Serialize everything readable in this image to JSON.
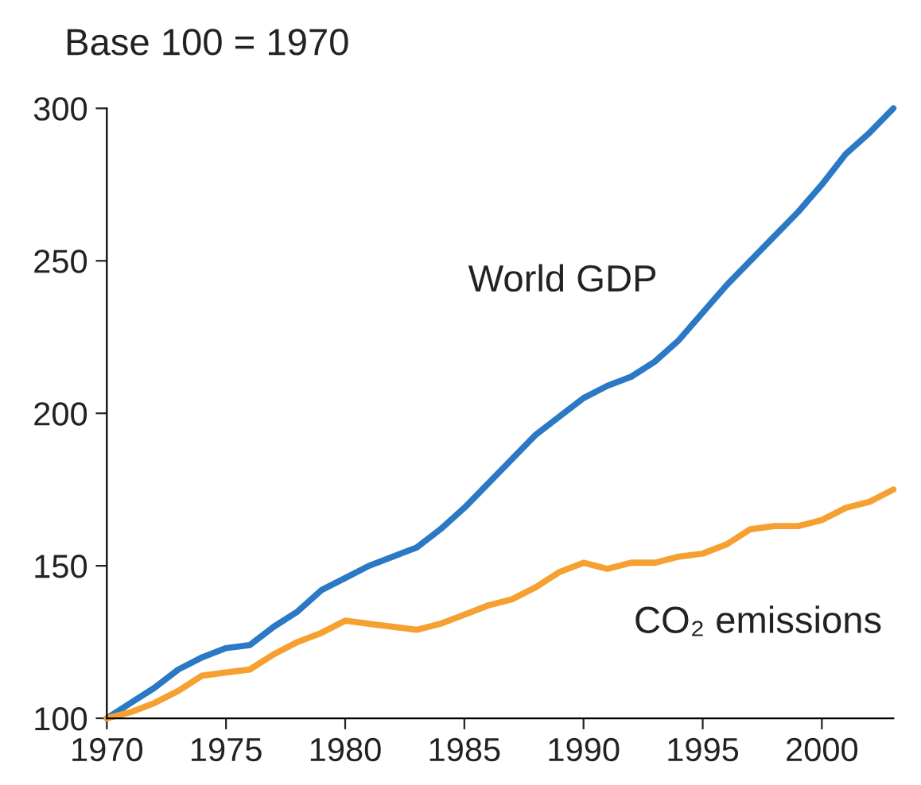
{
  "chart_data": {
    "type": "line",
    "ylabel": "Base 100 = 1970",
    "x": [
      1970,
      1971,
      1972,
      1973,
      1974,
      1975,
      1976,
      1977,
      1978,
      1979,
      1980,
      1981,
      1982,
      1983,
      1984,
      1985,
      1986,
      1987,
      1988,
      1989,
      1990,
      1991,
      1992,
      1993,
      1994,
      1995,
      1996,
      1997,
      1998,
      1999,
      2000,
      2001,
      2002,
      2003
    ],
    "series": [
      {
        "name": "World GDP",
        "color": "#2b78c5",
        "values": [
          100,
          105,
          110,
          116,
          120,
          123,
          124,
          130,
          135,
          142,
          146,
          150,
          153,
          156,
          162,
          169,
          177,
          185,
          193,
          199,
          205,
          209,
          212,
          217,
          224,
          233,
          242,
          250,
          258,
          266,
          275,
          285,
          292,
          300
        ]
      },
      {
        "name": "CO₂ emissions",
        "color": "#f5a030",
        "values": [
          100,
          102,
          105,
          109,
          114,
          115,
          116,
          121,
          125,
          128,
          132,
          131,
          130,
          129,
          131,
          134,
          137,
          139,
          143,
          148,
          151,
          149,
          151,
          151,
          153,
          154,
          157,
          162,
          163,
          163,
          165,
          169,
          171,
          175
        ]
      }
    ],
    "xlim": [
      1970,
      2003
    ],
    "ylim": [
      100,
      300
    ],
    "xticks": [
      1970,
      1975,
      1980,
      1985,
      1990,
      1995,
      2000
    ],
    "yticks": [
      100,
      150,
      200,
      250,
      300
    ],
    "grid": false,
    "legend": false,
    "marker": "none",
    "line_style": "solid"
  }
}
